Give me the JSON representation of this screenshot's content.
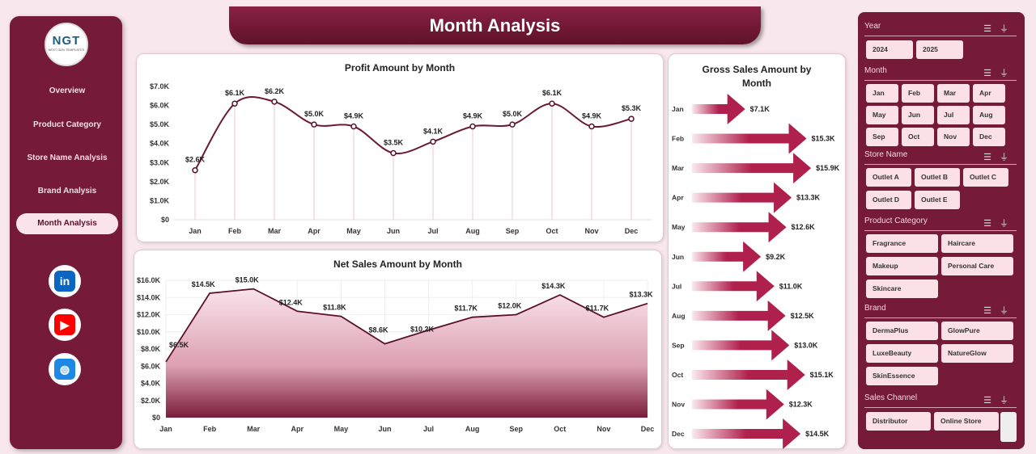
{
  "logo": {
    "text": "NGT",
    "subtitle": "NEXT GEN TEMPLATES"
  },
  "nav": [
    {
      "label": "Overview"
    },
    {
      "label": "Product Category"
    },
    {
      "label": "Store Name Analysis"
    },
    {
      "label": "Brand Analysis"
    },
    {
      "label": "Month Analysis",
      "active": true
    }
  ],
  "social": [
    {
      "icon": "linkedin-icon",
      "glyph": "in",
      "color": "#0a66c2"
    },
    {
      "icon": "youtube-icon",
      "glyph": "▶",
      "color": "#ff0000"
    },
    {
      "icon": "globe-icon",
      "glyph": "◍",
      "color": "#1e88e5"
    }
  ],
  "title": "Month Analysis",
  "colors": {
    "maroon": "#751a39",
    "line": "#6b1a35",
    "accent": "#b0204d"
  },
  "chart_data": [
    {
      "type": "line",
      "title": "Profit Amount by Month",
      "categories": [
        "Jan",
        "Feb",
        "Mar",
        "Apr",
        "May",
        "Jun",
        "Jul",
        "Aug",
        "Sep",
        "Oct",
        "Nov",
        "Dec"
      ],
      "values": [
        2.6,
        6.1,
        6.2,
        5.0,
        4.9,
        3.5,
        4.1,
        4.9,
        5.0,
        6.1,
        4.9,
        5.3
      ],
      "labels": [
        "$2.6K",
        "$6.1K",
        "$6.2K",
        "$5.0K",
        "$4.9K",
        "$3.5K",
        "$4.1K",
        "$4.9K",
        "$5.0K",
        "$6.1K",
        "$4.9K",
        "$5.3K"
      ],
      "yticks": [
        "$0",
        "$1.0K",
        "$2.0K",
        "$3.0K",
        "$4.0K",
        "$5.0K",
        "$6.0K",
        "$7.0K"
      ],
      "ylim": [
        0,
        7
      ],
      "unit": "K"
    },
    {
      "type": "area",
      "title": "Net Sales Amount by Month",
      "categories": [
        "Jan",
        "Feb",
        "Mar",
        "Apr",
        "May",
        "Jun",
        "Jul",
        "Aug",
        "Sep",
        "Oct",
        "Nov",
        "Dec"
      ],
      "values": [
        6.5,
        14.5,
        15.0,
        12.4,
        11.8,
        8.6,
        10.2,
        11.7,
        12.0,
        14.3,
        11.7,
        13.3
      ],
      "labels": [
        "$6.5K",
        "$14.5K",
        "$15.0K",
        "$12.4K",
        "$11.8K",
        "$8.6K",
        "$10.2K",
        "$11.7K",
        "$12.0K",
        "$14.3K",
        "$11.7K",
        "$13.3K"
      ],
      "yticks": [
        "$0",
        "$2.0K",
        "$4.0K",
        "$6.0K",
        "$8.0K",
        "$10.0K",
        "$12.0K",
        "$14.0K",
        "$16.0K"
      ],
      "ylim": [
        0,
        16
      ],
      "unit": "K"
    },
    {
      "type": "bar",
      "title": "Gross Sales Amount by Month",
      "categories": [
        "Jan",
        "Feb",
        "Mar",
        "Apr",
        "May",
        "Jun",
        "Jul",
        "Aug",
        "Sep",
        "Oct",
        "Nov",
        "Dec"
      ],
      "values": [
        7.1,
        15.3,
        15.9,
        13.3,
        12.6,
        9.2,
        11.0,
        12.5,
        13.0,
        15.1,
        12.3,
        14.5
      ],
      "labels": [
        "$7.1K",
        "$15.3K",
        "$15.9K",
        "$13.3K",
        "$12.6K",
        "$9.2K",
        "$11.0K",
        "$12.5K",
        "$13.0K",
        "$15.1K",
        "$12.3K",
        "$14.5K"
      ],
      "orientation": "horizontal",
      "unit": "K"
    }
  ],
  "slicers": [
    {
      "title": "Year",
      "items": [
        "2024",
        "2025"
      ]
    },
    {
      "title": "Month",
      "items": [
        "Jan",
        "Feb",
        "Mar",
        "Apr",
        "May",
        "Jun",
        "Jul",
        "Aug",
        "Sep",
        "Oct",
        "Nov",
        "Dec"
      ]
    },
    {
      "title": "Store Name",
      "items": [
        "Outlet A",
        "Outlet B",
        "Outlet C",
        "Outlet D",
        "Outlet E"
      ]
    },
    {
      "title": "Product Category",
      "items": [
        "Fragrance",
        "Haircare",
        "Makeup",
        "Personal Care",
        "Skincare"
      ]
    },
    {
      "title": "Brand",
      "items": [
        "DermaPlus",
        "GlowPure",
        "LuxeBeauty",
        "NatureGlow",
        "SkinEssence"
      ]
    },
    {
      "title": "Sales Channel",
      "items": [
        "Distributor",
        "Online Store"
      ]
    }
  ]
}
